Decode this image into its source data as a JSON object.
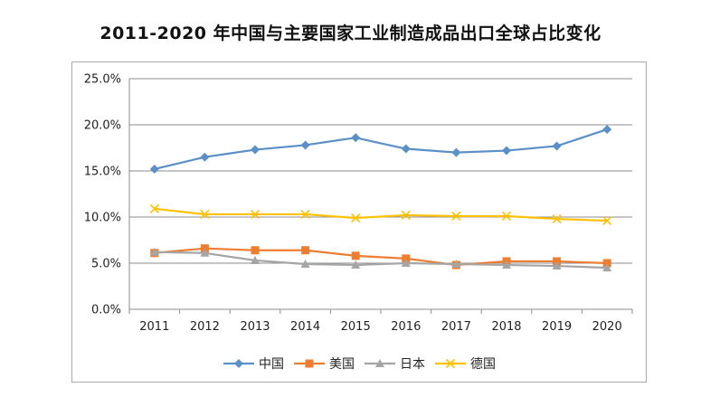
{
  "chart_data": {
    "type": "line",
    "title": "2011-2020 年中国与主要国家工业制造成品出口全球占比变化",
    "categories": [
      "2011",
      "2012",
      "2013",
      "2014",
      "2015",
      "2016",
      "2017",
      "2018",
      "2019",
      "2020"
    ],
    "ylim": [
      0,
      25
    ],
    "yticks": [
      "0.0%",
      "5.0%",
      "10.0%",
      "15.0%",
      "20.0%",
      "25.0%"
    ],
    "grid": true,
    "legend_position": "bottom",
    "series": [
      {
        "name": "中国",
        "marker": "diamond",
        "color": "#5b8fc7",
        "values": [
          15.2,
          16.5,
          17.3,
          17.8,
          18.6,
          17.4,
          17.0,
          17.2,
          17.7,
          19.5
        ]
      },
      {
        "name": "美国",
        "marker": "square",
        "color": "#ed7d31",
        "values": [
          6.1,
          6.6,
          6.4,
          6.4,
          5.8,
          5.5,
          4.8,
          5.2,
          5.2,
          5.0
        ]
      },
      {
        "name": "日本",
        "marker": "triangle",
        "color": "#a5a5a5",
        "values": [
          6.2,
          6.1,
          5.3,
          4.9,
          4.8,
          5.0,
          4.9,
          4.8,
          4.7,
          4.5
        ]
      },
      {
        "name": "德国",
        "marker": "x",
        "color": "#ffc000",
        "values": [
          10.9,
          10.3,
          10.3,
          10.3,
          9.9,
          10.2,
          10.1,
          10.1,
          9.8,
          9.6
        ]
      }
    ]
  }
}
